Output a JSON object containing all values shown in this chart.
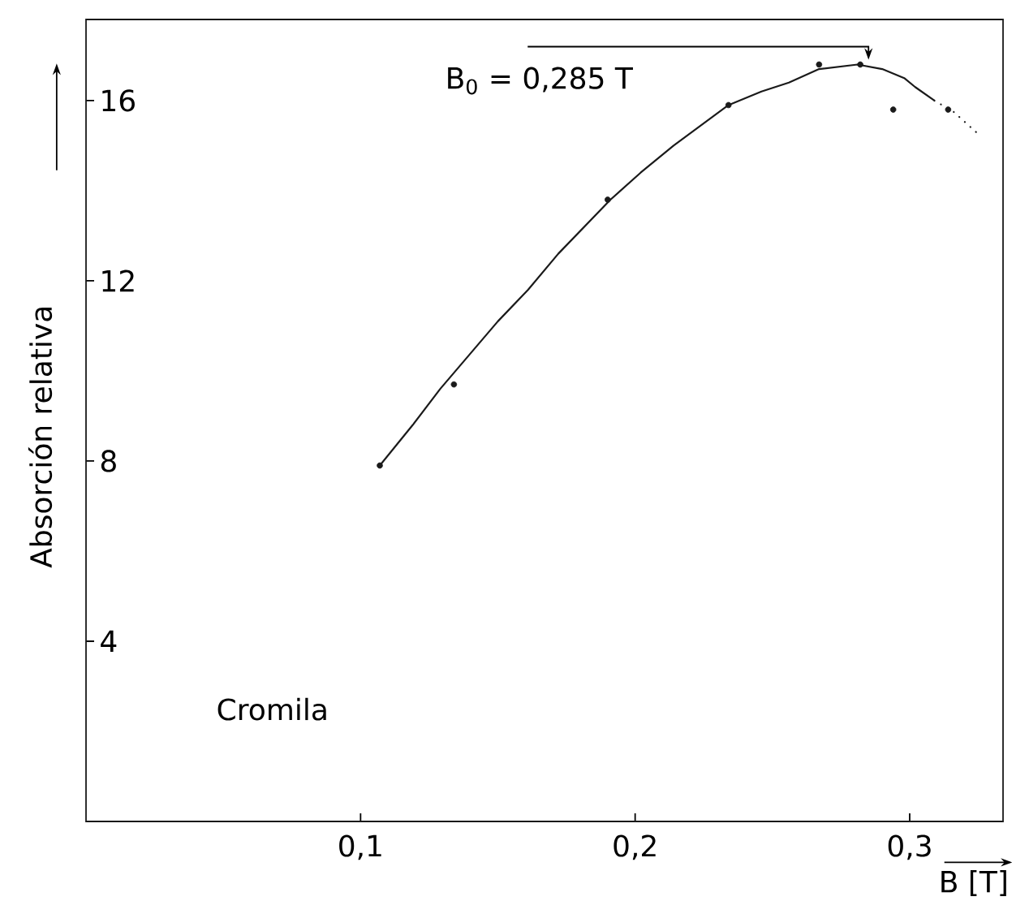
{
  "chart_data": {
    "type": "line",
    "xlabel": "B [T]",
    "ylabel": "Absorción relativa",
    "xlim": [
      0,
      0.334
    ],
    "ylim": [
      0,
      17.8
    ],
    "xticks": [
      {
        "value": 0.1,
        "label": "0,1"
      },
      {
        "value": 0.2,
        "label": "0,2"
      },
      {
        "value": 0.3,
        "label": "0,3"
      }
    ],
    "yticks": [
      4,
      8,
      12,
      16
    ],
    "series": [
      {
        "color": "#1a1a1a",
        "marker": "none",
        "line_style": "solid",
        "x": [
          0.107,
          0.119,
          0.129,
          0.15,
          0.161,
          0.172,
          0.191,
          0.202,
          0.214,
          0.234,
          0.246,
          0.256,
          0.267,
          0.281,
          0.29,
          0.298,
          0.302,
          0.309
        ],
        "values": [
          7.9,
          8.8,
          9.6,
          11.1,
          11.8,
          12.6,
          13.8,
          14.4,
          15.0,
          15.9,
          16.2,
          16.4,
          16.7,
          16.8,
          16.7,
          16.5,
          16.3,
          16.0
        ]
      },
      {
        "color": "#1a1a1a",
        "marker": "none",
        "line_style": "dotted",
        "x": [
          0.309,
          0.316,
          0.326
        ],
        "values": [
          16.0,
          15.75,
          15.2
        ]
      },
      {
        "type": "scatter",
        "color": "#1a1a1a",
        "marker": "circle",
        "x": [
          0.107,
          0.134,
          0.19,
          0.234,
          0.267,
          0.282,
          0.294,
          0.314
        ],
        "values": [
          7.9,
          9.7,
          13.8,
          15.9,
          16.8,
          16.8,
          15.8,
          15.8
        ]
      }
    ],
    "annotations": [
      {
        "text": "B$_{0}$ = 0,285 T",
        "x": 0.285,
        "y": 16.8
      },
      "Cromila"
    ]
  }
}
